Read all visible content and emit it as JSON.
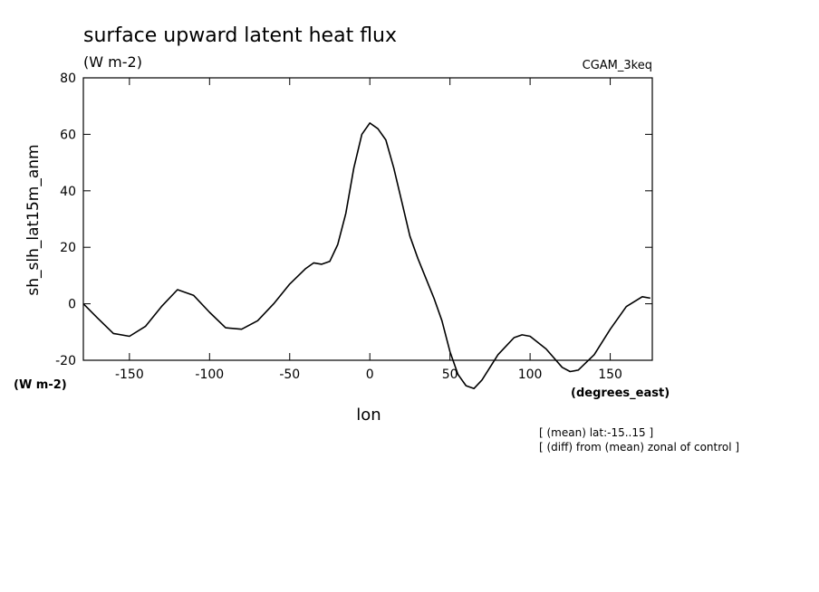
{
  "chart_data": {
    "type": "line",
    "title": "surface upward latent heat flux",
    "subtitle": "(W m-2)",
    "annotations": [
      "CGAM_3keq",
      "(W m-2)",
      "(degrees_east)",
      "[ (mean) lat:-15..15 ]",
      "[ (diff) from (mean) zonal of control ]"
    ],
    "x_label": "lon",
    "y_label": "sh_slh_lat15m_anm",
    "x": [
      -178.75,
      -170,
      -160,
      -150,
      -140,
      -130,
      -120,
      -110,
      -100,
      -90,
      -80,
      -70,
      -60,
      -50,
      -40,
      -35,
      -30,
      -25,
      -20,
      -15,
      -10,
      -5,
      0,
      5,
      10,
      15,
      20,
      25,
      30,
      40,
      45,
      50,
      55,
      60,
      65,
      70,
      80,
      90,
      95,
      100,
      110,
      120,
      125,
      130,
      140,
      150,
      160,
      170,
      175
    ],
    "series": [
      {
        "name": "sh_slh_lat15m_anm",
        "color": "#000000",
        "values": [
          0,
          -5,
          -10.5,
          -11.5,
          -8,
          -1,
          5,
          3,
          -3,
          -8.5,
          -9,
          -6,
          0,
          7,
          12.5,
          14.5,
          14,
          15,
          21,
          32,
          48,
          60,
          64,
          62,
          58,
          48,
          36,
          24,
          16,
          2,
          -6,
          -17,
          -25,
          -29,
          -30,
          -27,
          -18,
          -12,
          -11,
          -11.5,
          -16,
          -22.5,
          -24,
          -23.5,
          -18,
          -9,
          -1,
          2.5,
          2
        ]
      }
    ],
    "xlim": [
      -178.75,
      176.25
    ],
    "ylim": [
      -20,
      80
    ],
    "xticks": [
      -150,
      -100,
      -50,
      0,
      50,
      100,
      150
    ],
    "yticks": [
      -20,
      0,
      20,
      40,
      60,
      80
    ]
  }
}
